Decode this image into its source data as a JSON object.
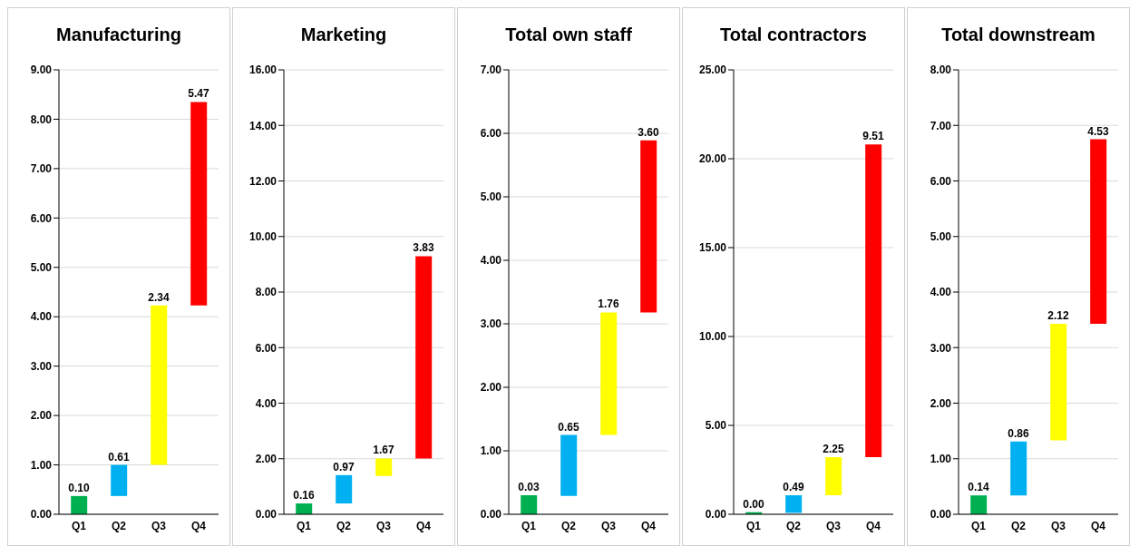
{
  "chart_data": [
    {
      "type": "bar",
      "title": "Manufacturing",
      "categories": [
        "Q1",
        "Q2",
        "Q3",
        "Q4"
      ],
      "base": [
        0,
        0.37,
        1.0,
        4.23
      ],
      "values": [
        0.37,
        0.63,
        3.23,
        4.12
      ],
      "annotations": [
        {
          "text": "0.10",
          "x": "Q1",
          "y": 0.37
        },
        {
          "text": "0.61",
          "x": "Q2",
          "y": 1.0
        },
        {
          "text": "2.34",
          "x": "Q3",
          "y": 4.23
        },
        {
          "text": "5.47",
          "x": "Q4",
          "y": 8.35
        }
      ],
      "colors": [
        "#00b050",
        "#00b0f0",
        "#ffff00",
        "#ff0000"
      ],
      "ylim": [
        0,
        9
      ],
      "yticks": [
        {
          "value": 0,
          "label": "0.00"
        },
        {
          "value": 1,
          "label": "1.00"
        },
        {
          "value": 2,
          "label": "2.00"
        },
        {
          "value": 3,
          "label": "3.00"
        },
        {
          "value": 4,
          "label": "4.00"
        },
        {
          "value": 5,
          "label": "5.00"
        },
        {
          "value": 6,
          "label": "6.00"
        },
        {
          "value": 7,
          "label": "7.00"
        },
        {
          "value": 8,
          "label": "8.00"
        },
        {
          "value": 9,
          "label": "9.00"
        }
      ],
      "grid": "y"
    },
    {
      "type": "bar",
      "title": "Marketing",
      "categories": [
        "Q1",
        "Q2",
        "Q3",
        "Q4"
      ],
      "base": [
        0,
        0.39,
        1.38,
        2.01
      ],
      "values": [
        0.39,
        1.02,
        0.63,
        7.28
      ],
      "annotations": [
        {
          "text": "0.16",
          "x": "Q1",
          "y": 0.39
        },
        {
          "text": "0.97",
          "x": "Q2",
          "y": 1.41
        },
        {
          "text": "1.67",
          "x": "Q3",
          "y": 2.01
        },
        {
          "text": "3.83",
          "x": "Q4",
          "y": 9.29
        }
      ],
      "colors": [
        "#00b050",
        "#00b0f0",
        "#ffff00",
        "#ff0000"
      ],
      "ylim": [
        0,
        16
      ],
      "yticks": [
        {
          "value": 0,
          "label": "0.00"
        },
        {
          "value": 2,
          "label": "2.00"
        },
        {
          "value": 4,
          "label": "4.00"
        },
        {
          "value": 6,
          "label": "6.00"
        },
        {
          "value": 8,
          "label": "8.00"
        },
        {
          "value": 10,
          "label": "10.00"
        },
        {
          "value": 12,
          "label": "12.00"
        },
        {
          "value": 14,
          "label": "14.00"
        },
        {
          "value": 16,
          "label": "16.00"
        }
      ],
      "grid": "y"
    },
    {
      "type": "bar",
      "title": "Total own staff",
      "categories": [
        "Q1",
        "Q2",
        "Q3",
        "Q4"
      ],
      "base": [
        0,
        0.29,
        1.25,
        3.18
      ],
      "values": [
        0.3,
        0.96,
        1.93,
        2.71
      ],
      "annotations": [
        {
          "text": "0.03",
          "x": "Q1",
          "y": 0.3
        },
        {
          "text": "0.65",
          "x": "Q2",
          "y": 1.25
        },
        {
          "text": "1.76",
          "x": "Q3",
          "y": 3.18
        },
        {
          "text": "3.60",
          "x": "Q4",
          "y": 5.89
        }
      ],
      "colors": [
        "#00b050",
        "#00b0f0",
        "#ffff00",
        "#ff0000"
      ],
      "ylim": [
        0,
        7
      ],
      "yticks": [
        {
          "value": 0,
          "label": "0.00"
        },
        {
          "value": 1,
          "label": "1.00"
        },
        {
          "value": 2,
          "label": "2.00"
        },
        {
          "value": 3,
          "label": "3.00"
        },
        {
          "value": 4,
          "label": "4.00"
        },
        {
          "value": 5,
          "label": "5.00"
        },
        {
          "value": 6,
          "label": "6.00"
        },
        {
          "value": 7,
          "label": "7.00"
        }
      ],
      "grid": "y"
    },
    {
      "type": "bar",
      "title": "Total contractors",
      "categories": [
        "Q1",
        "Q2",
        "Q3",
        "Q4"
      ],
      "base": [
        0,
        0.08,
        1.07,
        3.21
      ],
      "values": [
        0.12,
        0.99,
        2.14,
        17.59
      ],
      "annotations": [
        {
          "text": "0.00",
          "x": "Q1",
          "y": 0.12
        },
        {
          "text": "0.49",
          "x": "Q2",
          "y": 1.07
        },
        {
          "text": "2.25",
          "x": "Q3",
          "y": 3.21
        },
        {
          "text": "9.51",
          "x": "Q4",
          "y": 20.8
        }
      ],
      "colors": [
        "#00b050",
        "#00b0f0",
        "#ffff00",
        "#ff0000"
      ],
      "ylim": [
        0,
        25
      ],
      "yticks": [
        {
          "value": 0,
          "label": "0.00"
        },
        {
          "value": 5,
          "label": "5.00"
        },
        {
          "value": 10,
          "label": "10.00"
        },
        {
          "value": 15,
          "label": "15.00"
        },
        {
          "value": 20,
          "label": "20.00"
        },
        {
          "value": 25,
          "label": "25.00"
        }
      ],
      "grid": "y"
    },
    {
      "type": "bar",
      "title": "Total downstream",
      "categories": [
        "Q1",
        "Q2",
        "Q3",
        "Q4"
      ],
      "base": [
        0,
        0.34,
        1.33,
        3.43
      ],
      "values": [
        0.34,
        0.97,
        2.1,
        3.32
      ],
      "annotations": [
        {
          "text": "0.14",
          "x": "Q1",
          "y": 0.34
        },
        {
          "text": "0.86",
          "x": "Q2",
          "y": 1.31
        },
        {
          "text": "2.12",
          "x": "Q3",
          "y": 3.43
        },
        {
          "text": "4.53",
          "x": "Q4",
          "y": 6.75
        }
      ],
      "colors": [
        "#00b050",
        "#00b0f0",
        "#ffff00",
        "#ff0000"
      ],
      "ylim": [
        0,
        8
      ],
      "yticks": [
        {
          "value": 0,
          "label": "0.00"
        },
        {
          "value": 1,
          "label": "1.00"
        },
        {
          "value": 2,
          "label": "2.00"
        },
        {
          "value": 3,
          "label": "3.00"
        },
        {
          "value": 4,
          "label": "4.00"
        },
        {
          "value": 5,
          "label": "5.00"
        },
        {
          "value": 6,
          "label": "6.00"
        },
        {
          "value": 7,
          "label": "7.00"
        },
        {
          "value": 8,
          "label": "8.00"
        }
      ],
      "grid": "y"
    }
  ]
}
